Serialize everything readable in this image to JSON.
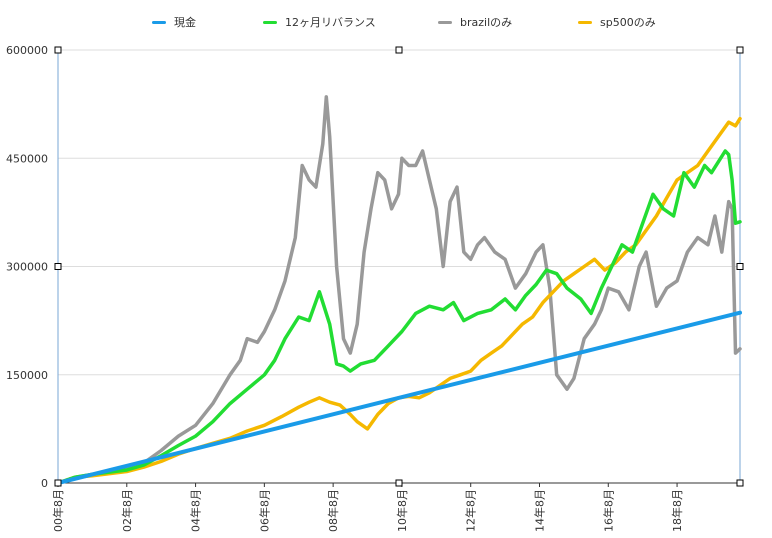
{
  "chart_data": {
    "type": "line",
    "title": "",
    "xlabel": "",
    "ylabel": "",
    "ylim": [
      0,
      600000
    ],
    "y_ticks": [
      0,
      150000,
      300000,
      450000,
      600000
    ],
    "y_tick_labels": [
      "0",
      "150000",
      "300000",
      "450000",
      "600000"
    ],
    "x_range": [
      0,
      19.83
    ],
    "x_ticks": [
      0,
      2,
      4,
      6,
      8,
      10,
      12,
      14,
      16,
      18
    ],
    "x_tick_labels": [
      "00年8月",
      "02年8月",
      "04年8月",
      "06年8月",
      "08年8月",
      "10年8月",
      "12年8月",
      "14年8月",
      "16年8月",
      "18年8月"
    ],
    "x_unit_note": "years from 00年8月",
    "grid": "horizontal",
    "legend_position": "top",
    "series": [
      {
        "name": "現金",
        "color": "#1a9be8",
        "x": [
          0,
          19.83
        ],
        "y": [
          0,
          236000
        ]
      },
      {
        "name": "12ヶ月リバランス",
        "color": "#22dd33",
        "x": [
          0,
          0.5,
          1,
          1.5,
          2,
          2.5,
          3,
          3.5,
          4,
          4.5,
          5,
          5.5,
          6,
          6.3,
          6.6,
          7,
          7.3,
          7.6,
          7.9,
          8.1,
          8.3,
          8.5,
          8.8,
          9.2,
          9.6,
          10,
          10.4,
          10.8,
          11.2,
          11.5,
          11.8,
          12.2,
          12.6,
          13,
          13.3,
          13.6,
          13.9,
          14.2,
          14.5,
          14.8,
          15.2,
          15.5,
          15.8,
          16.1,
          16.4,
          16.7,
          17,
          17.3,
          17.6,
          17.9,
          18.2,
          18.5,
          18.8,
          19,
          19.2,
          19.4,
          19.5,
          19.6,
          19.7,
          19.83
        ],
        "y": [
          0,
          8000,
          12000,
          15000,
          18000,
          25000,
          38000,
          52000,
          65000,
          85000,
          110000,
          130000,
          150000,
          170000,
          200000,
          230000,
          225000,
          265000,
          220000,
          165000,
          162000,
          155000,
          165000,
          170000,
          190000,
          210000,
          235000,
          245000,
          240000,
          250000,
          225000,
          235000,
          240000,
          255000,
          240000,
          260000,
          275000,
          295000,
          290000,
          270000,
          255000,
          235000,
          270000,
          300000,
          330000,
          320000,
          360000,
          400000,
          380000,
          370000,
          430000,
          410000,
          440000,
          430000,
          445000,
          460000,
          455000,
          420000,
          360000,
          362000
        ]
      },
      {
        "name": "brazilのみ",
        "color": "#999999",
        "x": [
          0,
          0.5,
          1,
          1.5,
          2,
          2.5,
          3,
          3.5,
          4,
          4.5,
          5,
          5.3,
          5.5,
          5.8,
          6,
          6.3,
          6.6,
          6.9,
          7.1,
          7.3,
          7.5,
          7.7,
          7.8,
          7.9,
          8.1,
          8.3,
          8.5,
          8.7,
          8.9,
          9.1,
          9.3,
          9.5,
          9.7,
          9.9,
          10,
          10.2,
          10.4,
          10.6,
          10.8,
          11,
          11.2,
          11.4,
          11.6,
          11.8,
          12,
          12.2,
          12.4,
          12.7,
          13,
          13.3,
          13.6,
          13.9,
          14.1,
          14.3,
          14.5,
          14.8,
          15,
          15.3,
          15.6,
          15.8,
          16,
          16.3,
          16.6,
          16.9,
          17.1,
          17.4,
          17.7,
          18,
          18.3,
          18.6,
          18.9,
          19.1,
          19.3,
          19.5,
          19.6,
          19.7,
          19.83
        ],
        "y": [
          0,
          8000,
          12000,
          15000,
          20000,
          28000,
          45000,
          65000,
          80000,
          110000,
          150000,
          170000,
          200000,
          195000,
          210000,
          240000,
          280000,
          340000,
          440000,
          420000,
          410000,
          470000,
          535000,
          480000,
          300000,
          200000,
          180000,
          220000,
          320000,
          380000,
          430000,
          420000,
          380000,
          400000,
          450000,
          440000,
          440000,
          460000,
          420000,
          380000,
          300000,
          390000,
          410000,
          320000,
          310000,
          330000,
          340000,
          320000,
          310000,
          270000,
          290000,
          320000,
          330000,
          270000,
          150000,
          130000,
          145000,
          200000,
          220000,
          240000,
          270000,
          265000,
          240000,
          300000,
          320000,
          245000,
          270000,
          280000,
          320000,
          340000,
          330000,
          370000,
          320000,
          390000,
          380000,
          180000,
          186000
        ]
      },
      {
        "name": "sp500のみ",
        "color": "#f5b800",
        "x": [
          0,
          0.5,
          1,
          1.5,
          2,
          2.5,
          3,
          3.5,
          4,
          4.5,
          5,
          5.5,
          6,
          6.5,
          7,
          7.3,
          7.6,
          7.9,
          8.2,
          8.5,
          8.7,
          9,
          9.3,
          9.6,
          9.9,
          10.2,
          10.5,
          10.8,
          11.1,
          11.4,
          11.7,
          12,
          12.3,
          12.6,
          12.9,
          13.2,
          13.5,
          13.8,
          14.1,
          14.4,
          14.7,
          15,
          15.3,
          15.6,
          15.9,
          16.2,
          16.5,
          16.8,
          17.1,
          17.4,
          17.7,
          18,
          18.3,
          18.6,
          18.9,
          19.2,
          19.5,
          19.7,
          19.83
        ],
        "y": [
          0,
          8000,
          10000,
          13000,
          16000,
          22000,
          30000,
          40000,
          48000,
          55000,
          62000,
          72000,
          80000,
          92000,
          105000,
          112000,
          118000,
          112000,
          108000,
          95000,
          85000,
          75000,
          95000,
          110000,
          118000,
          120000,
          118000,
          125000,
          135000,
          145000,
          150000,
          155000,
          170000,
          180000,
          190000,
          205000,
          220000,
          230000,
          250000,
          265000,
          280000,
          290000,
          300000,
          310000,
          295000,
          305000,
          320000,
          330000,
          350000,
          370000,
          395000,
          420000,
          430000,
          440000,
          460000,
          480000,
          500000,
          495000,
          505000
        ]
      }
    ]
  }
}
